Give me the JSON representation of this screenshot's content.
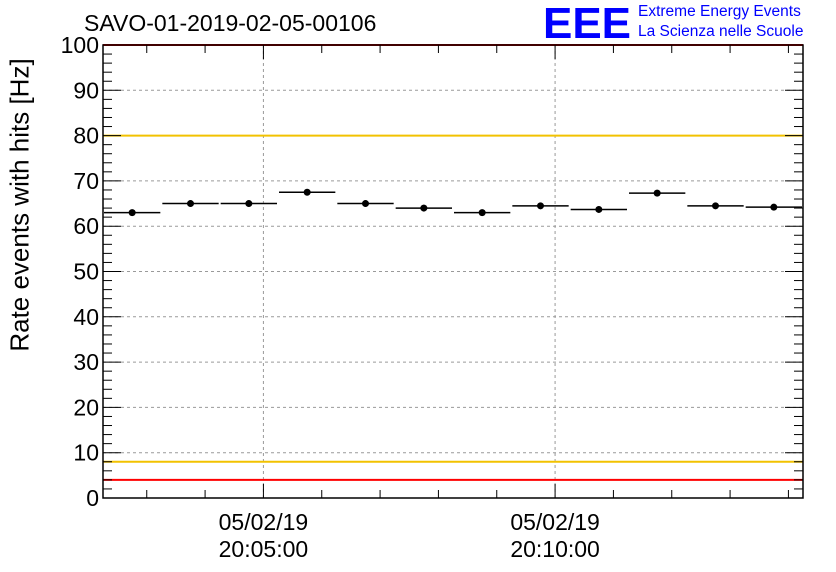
{
  "header": {
    "title": "SAVO-01-2019-02-05-00106"
  },
  "logo": {
    "mark": "EEE",
    "line1": "Extreme Energy Events",
    "line2": "La Scienza nelle Scuole",
    "color": "#0000ff"
  },
  "chart_data": {
    "type": "scatter",
    "title": "SAVO-01-2019-02-05-00106",
    "xlabel": "",
    "ylabel": "Rate events with hits [Hz]",
    "ylim": [
      0,
      100
    ],
    "xlim_minutes": [
      0,
      12
    ],
    "grid": true,
    "y_ticks": [
      0,
      10,
      20,
      30,
      40,
      50,
      60,
      70,
      80,
      90,
      100
    ],
    "x_tick_labels": [
      {
        "at_minutes": 2.75,
        "date": "05/02/19",
        "time": "20:05:00"
      },
      {
        "at_minutes": 7.75,
        "date": "05/02/19",
        "time": "20:10:00"
      }
    ],
    "points": [
      {
        "bin": [
          0.0,
          1.0
        ],
        "y": 63.0,
        "err": 0.7
      },
      {
        "bin": [
          1.0,
          2.0
        ],
        "y": 65.0,
        "err": 0.7
      },
      {
        "bin": [
          2.0,
          3.0
        ],
        "y": 65.0,
        "err": 0.7
      },
      {
        "bin": [
          3.0,
          4.0
        ],
        "y": 67.5,
        "err": 0.7
      },
      {
        "bin": [
          4.0,
          5.0
        ],
        "y": 65.0,
        "err": 0.7
      },
      {
        "bin": [
          5.0,
          6.0
        ],
        "y": 64.0,
        "err": 0.7
      },
      {
        "bin": [
          6.0,
          7.0
        ],
        "y": 63.0,
        "err": 0.7
      },
      {
        "bin": [
          7.0,
          8.0
        ],
        "y": 64.5,
        "err": 0.7
      },
      {
        "bin": [
          8.0,
          9.0
        ],
        "y": 63.7,
        "err": 0.7
      },
      {
        "bin": [
          9.0,
          10.0
        ],
        "y": 67.3,
        "err": 0.7
      },
      {
        "bin": [
          10.0,
          11.0
        ],
        "y": 64.5,
        "err": 0.7
      },
      {
        "bin": [
          11.0,
          12.0
        ],
        "y": 64.2,
        "err": 0.7
      }
    ],
    "reference_lines": [
      {
        "y": 100,
        "color": "#ff0000"
      },
      {
        "y": 80,
        "color": "#f2c200"
      },
      {
        "y": 8,
        "color": "#f2c200"
      },
      {
        "y": 4,
        "color": "#ff0000"
      }
    ]
  }
}
